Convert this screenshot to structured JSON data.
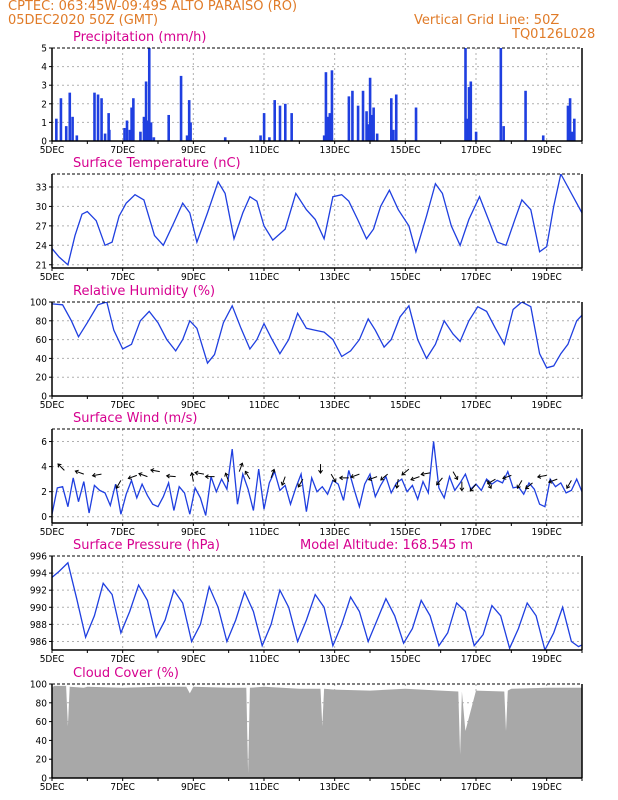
{
  "header": {
    "line1": "CPTEC:   063:45W-09:49S   ALTO PARAISO (RO)",
    "line2": "05DEC2020 50Z (GMT)",
    "grid_note": "Vertical Grid Line: 50Z",
    "code": "TQ0126L028"
  },
  "x_axis": {
    "labels": [
      "5DEC",
      "7DEC",
      "9DEC",
      "11DEC",
      "13DEC",
      "15DEC",
      "17DEC",
      "19DEC"
    ],
    "label_days": [
      0,
      2,
      4,
      6,
      8,
      10,
      12,
      14
    ],
    "range_days": [
      0,
      15
    ]
  },
  "colors": {
    "line": "#1f3fe0",
    "title": "#d6008f",
    "header": "#e07b28",
    "cloud": "#a8a8a8",
    "grid": "#b0b0b0"
  },
  "chart_data": [
    {
      "id": "precip",
      "type": "bar",
      "title": "Precipitation (mm/h)",
      "xlabel": "",
      "ylabel": "",
      "ylim": [
        0,
        5
      ],
      "yticks": [
        0,
        1,
        2,
        3,
        4,
        5
      ],
      "grid": true,
      "x": [
        0.12,
        0.25,
        0.4,
        0.5,
        0.58,
        0.7,
        1.2,
        1.3,
        1.4,
        1.5,
        1.6,
        1.62,
        2.05,
        2.12,
        2.2,
        2.25,
        2.3,
        2.5,
        2.6,
        2.66,
        2.7,
        2.75,
        2.8,
        2.88,
        3.3,
        3.65,
        3.82,
        3.88,
        3.92,
        4.9,
        5.9,
        6.0,
        6.15,
        6.3,
        6.45,
        6.6,
        6.78,
        7.7,
        7.75,
        7.8,
        7.86,
        7.92,
        8.4,
        8.5,
        8.66,
        8.8,
        8.9,
        8.95,
        9.0,
        9.05,
        9.1,
        9.2,
        9.6,
        9.66,
        9.74,
        10.3,
        11.7,
        11.75,
        11.8,
        11.85,
        12.0,
        12.7,
        12.78,
        13.4,
        13.9,
        14.6,
        14.66,
        14.72,
        14.78
      ],
      "values": [
        1.2,
        2.3,
        0.8,
        2.6,
        1.3,
        0.3,
        2.6,
        2.5,
        2.3,
        0.4,
        1.5,
        0.6,
        0.7,
        1.1,
        0.6,
        1.8,
        2.3,
        0.5,
        1.3,
        3.2,
        1.1,
        5.0,
        1.0,
        0.2,
        1.4,
        3.5,
        0.3,
        2.2,
        1.0,
        0.2,
        0.3,
        1.5,
        0.2,
        2.2,
        1.9,
        2.0,
        1.5,
        0.3,
        3.7,
        1.3,
        1.5,
        3.8,
        2.4,
        2.7,
        1.9,
        2.7,
        1.6,
        0.9,
        3.4,
        1.4,
        1.8,
        0.4,
        2.3,
        0.6,
        2.5,
        1.8,
        5.0,
        1.2,
        2.9,
        3.2,
        0.5,
        5.0,
        0.8,
        2.7,
        0.3,
        1.9,
        2.3,
        0.5,
        1.2
      ]
    },
    {
      "id": "temp",
      "type": "line",
      "title": "Surface Temperature (nC)",
      "xlabel": "",
      "ylabel": "",
      "ylim": [
        20.5,
        35
      ],
      "yticks": [
        21,
        24,
        27,
        30,
        33
      ],
      "grid": true,
      "x": [
        0,
        0.2,
        0.45,
        0.65,
        0.85,
        1.0,
        1.25,
        1.5,
        1.7,
        1.9,
        2.1,
        2.35,
        2.6,
        2.9,
        3.15,
        3.45,
        3.7,
        3.9,
        4.1,
        4.4,
        4.7,
        4.9,
        5.15,
        5.4,
        5.6,
        5.8,
        6.0,
        6.25,
        6.6,
        6.9,
        7.2,
        7.45,
        7.7,
        7.95,
        8.2,
        8.4,
        8.65,
        8.9,
        9.1,
        9.3,
        9.55,
        9.8,
        10.1,
        10.3,
        10.6,
        10.85,
        11.05,
        11.3,
        11.55,
        11.8,
        12.1,
        12.35,
        12.6,
        12.85,
        13.1,
        13.3,
        13.55,
        13.8,
        14.0,
        14.2,
        14.4,
        14.6,
        14.85,
        15.0
      ],
      "values": [
        23.5,
        22.2,
        21.0,
        25.5,
        28.8,
        29.2,
        27.8,
        24.0,
        24.5,
        28.5,
        30.5,
        31.8,
        31.0,
        25.5,
        24.0,
        27.5,
        30.5,
        29.0,
        24.5,
        29.0,
        33.8,
        32.0,
        25.0,
        29.0,
        31.5,
        30.8,
        27.0,
        24.8,
        26.5,
        32.0,
        29.5,
        28.0,
        25.0,
        31.5,
        31.8,
        30.8,
        28.0,
        25.0,
        26.5,
        30.0,
        32.5,
        29.5,
        27.0,
        23.0,
        28.5,
        33.5,
        32.0,
        27.0,
        24.0,
        28.0,
        31.5,
        28.0,
        24.5,
        24.0,
        28.0,
        31.0,
        29.5,
        23.0,
        23.8,
        30.0,
        35.0,
        33.0,
        30.5,
        29.0
      ]
    },
    {
      "id": "rh",
      "type": "line",
      "title": "Relative Humidity (%)",
      "xlabel": "",
      "ylabel": "",
      "ylim": [
        0,
        100
      ],
      "yticks": [
        0,
        20,
        40,
        60,
        80,
        100
      ],
      "grid": true,
      "x": [
        0,
        0.3,
        0.55,
        0.75,
        1.0,
        1.3,
        1.55,
        1.75,
        2.0,
        2.25,
        2.5,
        2.75,
        3.0,
        3.25,
        3.5,
        3.7,
        3.9,
        4.1,
        4.4,
        4.6,
        4.85,
        5.1,
        5.35,
        5.6,
        5.8,
        6.0,
        6.2,
        6.45,
        6.7,
        6.95,
        7.2,
        7.45,
        7.7,
        7.95,
        8.2,
        8.45,
        8.7,
        8.95,
        9.15,
        9.4,
        9.6,
        9.85,
        10.1,
        10.35,
        10.6,
        10.85,
        11.1,
        11.35,
        11.55,
        11.8,
        12.05,
        12.3,
        12.55,
        12.8,
        13.05,
        13.3,
        13.55,
        13.8,
        14.0,
        14.2,
        14.4,
        14.6,
        14.85,
        15.0
      ],
      "values": [
        98,
        97,
        80,
        63,
        78,
        97,
        100,
        70,
        50,
        55,
        80,
        90,
        78,
        60,
        48,
        60,
        80,
        72,
        35,
        44,
        78,
        96,
        72,
        50,
        60,
        77,
        62,
        45,
        60,
        88,
        72,
        70,
        68,
        60,
        42,
        48,
        60,
        82,
        70,
        52,
        60,
        84,
        96,
        60,
        40,
        55,
        80,
        66,
        58,
        80,
        95,
        90,
        72,
        55,
        92,
        100,
        95,
        45,
        30,
        32,
        45,
        55,
        80,
        86
      ]
    },
    {
      "id": "wind",
      "type": "line",
      "title": "Surface Wind (m/s)",
      "xlabel": "",
      "ylabel": "",
      "ylim": [
        -0.5,
        7
      ],
      "yticks": [
        0,
        2,
        4,
        6
      ],
      "grid": true,
      "x": [
        0,
        0.15,
        0.3,
        0.45,
        0.6,
        0.75,
        0.9,
        1.05,
        1.2,
        1.35,
        1.5,
        1.65,
        1.8,
        1.95,
        2.1,
        2.25,
        2.4,
        2.55,
        2.7,
        2.85,
        3.0,
        3.15,
        3.3,
        3.45,
        3.6,
        3.75,
        3.9,
        4.05,
        4.2,
        4.35,
        4.5,
        4.65,
        4.8,
        4.95,
        5.1,
        5.25,
        5.4,
        5.55,
        5.7,
        5.85,
        6.0,
        6.15,
        6.3,
        6.45,
        6.6,
        6.75,
        6.9,
        7.05,
        7.2,
        7.35,
        7.5,
        7.65,
        7.8,
        7.95,
        8.1,
        8.25,
        8.4,
        8.55,
        8.7,
        8.85,
        9.0,
        9.15,
        9.3,
        9.45,
        9.6,
        9.75,
        9.9,
        10.05,
        10.2,
        10.35,
        10.5,
        10.65,
        10.8,
        10.95,
        11.1,
        11.25,
        11.4,
        11.55,
        11.7,
        11.85,
        12.0,
        12.15,
        12.3,
        12.45,
        12.6,
        12.75,
        12.9,
        13.05,
        13.2,
        13.35,
        13.5,
        13.65,
        13.8,
        13.95,
        14.1,
        14.25,
        14.4,
        14.55,
        14.7,
        14.85,
        15.0
      ],
      "values": [
        0.2,
        2.3,
        2.4,
        0.8,
        3.1,
        1.2,
        2.8,
        0.3,
        2.5,
        2.1,
        1.9,
        0.9,
        2.6,
        0.2,
        1.8,
        2.9,
        1.5,
        2.6,
        1.7,
        1.0,
        0.8,
        1.6,
        2.7,
        0.5,
        2.4,
        1.9,
        0.2,
        2.3,
        1.5,
        0.1,
        3.2,
        2.0,
        3.0,
        2.2,
        5.4,
        1.0,
        3.4,
        2.2,
        0.5,
        3.8,
        0.6,
        2.7,
        3.6,
        2.1,
        2.5,
        1.0,
        2.3,
        3.4,
        0.4,
        3.1,
        2.0,
        2.4,
        1.8,
        2.9,
        2.6,
        1.3,
        3.7,
        2.2,
        0.8,
        2.6,
        3.4,
        1.6,
        2.5,
        3.2,
        1.9,
        2.7,
        3.0,
        2.0,
        2.5,
        1.4,
        2.8,
        1.9,
        6.0,
        2.3,
        1.5,
        3.2,
        2.1,
        2.7,
        3.4,
        2.2,
        2.6,
        2.1,
        3.0,
        2.6,
        2.9,
        2.7,
        3.6,
        2.3,
        2.4,
        1.8,
        2.7,
        2.2,
        1.0,
        0.8,
        3.0,
        2.4,
        2.7,
        1.9,
        2.1,
        3.0,
        2.0
      ],
      "arrows": [
        {
          "x": 0.35,
          "y": 3.7,
          "dir": 135
        },
        {
          "x": 0.9,
          "y": 3.4,
          "dir": 160
        },
        {
          "x": 1.4,
          "y": 3.4,
          "dir": 190
        },
        {
          "x": 1.95,
          "y": 2.9,
          "dir": 240
        },
        {
          "x": 2.4,
          "y": 3.3,
          "dir": 200
        },
        {
          "x": 2.7,
          "y": 3.2,
          "dir": 160
        },
        {
          "x": 3.05,
          "y": 3.6,
          "dir": 170
        },
        {
          "x": 3.5,
          "y": 3.2,
          "dir": 175
        },
        {
          "x": 4.0,
          "y": 2.8,
          "dir": 100
        },
        {
          "x": 4.3,
          "y": 3.4,
          "dir": 170
        },
        {
          "x": 4.6,
          "y": 3.2,
          "dir": 180
        },
        {
          "x": 5.0,
          "y": 2.8,
          "dir": 110
        },
        {
          "x": 5.3,
          "y": 3.6,
          "dir": 70
        },
        {
          "x": 5.6,
          "y": 3.0,
          "dir": 120
        },
        {
          "x": 6.2,
          "y": 3.1,
          "dir": 70
        },
        {
          "x": 6.6,
          "y": 3.2,
          "dir": 250
        },
        {
          "x": 7.1,
          "y": 3.0,
          "dir": 240
        },
        {
          "x": 7.6,
          "y": 4.2,
          "dir": 270
        },
        {
          "x": 7.9,
          "y": 3.4,
          "dir": 300
        },
        {
          "x": 8.4,
          "y": 3.1,
          "dir": 180
        },
        {
          "x": 8.7,
          "y": 3.4,
          "dir": 200
        },
        {
          "x": 9.2,
          "y": 3.2,
          "dir": 200
        },
        {
          "x": 9.5,
          "y": 3.4,
          "dir": 220
        },
        {
          "x": 9.8,
          "y": 3.0,
          "dir": 260
        },
        {
          "x": 10.1,
          "y": 3.8,
          "dir": 220
        },
        {
          "x": 10.4,
          "y": 3.2,
          "dir": 200
        },
        {
          "x": 10.7,
          "y": 3.5,
          "dir": 190
        },
        {
          "x": 11.05,
          "y": 3.1,
          "dir": 230
        },
        {
          "x": 11.35,
          "y": 3.6,
          "dir": 300
        },
        {
          "x": 11.6,
          "y": 2.8,
          "dir": 270
        },
        {
          "x": 12.0,
          "y": 2.6,
          "dir": 230
        },
        {
          "x": 12.3,
          "y": 2.9,
          "dir": 300
        },
        {
          "x": 12.55,
          "y": 3.0,
          "dir": 210
        },
        {
          "x": 13.0,
          "y": 3.3,
          "dir": 200
        },
        {
          "x": 13.3,
          "y": 2.9,
          "dir": 240
        },
        {
          "x": 13.6,
          "y": 2.7,
          "dir": 220
        },
        {
          "x": 14.0,
          "y": 3.3,
          "dir": 190
        },
        {
          "x": 14.3,
          "y": 3.0,
          "dir": 200
        },
        {
          "x": 14.7,
          "y": 2.9,
          "dir": 240
        }
      ]
    },
    {
      "id": "pres",
      "type": "line",
      "title": "Surface Pressure (hPa)",
      "subtitle": "Model Altitude: 168.545 m",
      "xlabel": "",
      "ylabel": "",
      "ylim": [
        985,
        996
      ],
      "yticks": [
        986,
        988,
        990,
        992,
        994,
        996
      ],
      "grid": true,
      "x": [
        0,
        0.2,
        0.45,
        0.7,
        0.95,
        1.2,
        1.45,
        1.7,
        1.95,
        2.2,
        2.45,
        2.7,
        2.95,
        3.2,
        3.45,
        3.7,
        3.95,
        4.2,
        4.45,
        4.7,
        4.95,
        5.2,
        5.45,
        5.7,
        5.95,
        6.2,
        6.45,
        6.7,
        6.95,
        7.2,
        7.45,
        7.7,
        7.95,
        8.2,
        8.45,
        8.7,
        8.95,
        9.2,
        9.45,
        9.7,
        9.95,
        10.2,
        10.45,
        10.7,
        10.95,
        11.2,
        11.45,
        11.7,
        11.95,
        12.2,
        12.45,
        12.7,
        12.95,
        13.2,
        13.45,
        13.7,
        13.95,
        14.2,
        14.45,
        14.7,
        14.9,
        15.0
      ],
      "values": [
        993.5,
        994.2,
        995.2,
        991.0,
        986.5,
        989.0,
        992.8,
        991.5,
        987.0,
        989.5,
        992.6,
        990.8,
        986.5,
        988.5,
        992.0,
        990.5,
        986.0,
        988.0,
        992.4,
        990.0,
        986.0,
        988.5,
        991.8,
        989.5,
        985.5,
        988.0,
        992.0,
        990.0,
        986.0,
        988.5,
        991.5,
        990.0,
        985.5,
        988.0,
        991.2,
        989.5,
        986.0,
        988.5,
        991.0,
        989.0,
        985.8,
        987.5,
        990.8,
        989.0,
        985.5,
        987.0,
        990.5,
        989.5,
        985.5,
        986.8,
        990.2,
        989.0,
        985.2,
        987.5,
        990.5,
        989.0,
        985.0,
        987.0,
        990.0,
        986.0,
        985.4,
        985.6
      ]
    },
    {
      "id": "cloud",
      "type": "area",
      "title": "Cloud Cover (%)",
      "xlabel": "",
      "ylabel": "",
      "ylim": [
        0,
        100
      ],
      "yticks": [
        0,
        20,
        40,
        60,
        80,
        100
      ],
      "grid": true,
      "x": [
        0,
        0.05,
        0.4,
        0.45,
        0.5,
        0.9,
        1.0,
        2.0,
        3.0,
        3.8,
        3.9,
        4.0,
        5.0,
        5.5,
        5.55,
        5.6,
        6.0,
        7.0,
        7.6,
        7.65,
        7.7,
        8.0,
        9.0,
        10.0,
        11.0,
        11.5,
        11.55,
        11.6,
        11.7,
        12.0,
        12.8,
        12.85,
        12.9,
        13.0,
        14.0,
        15.0
      ],
      "values": [
        95,
        98,
        98,
        55,
        97,
        96,
        97,
        96,
        97,
        97,
        90,
        97,
        96,
        96,
        5,
        96,
        97,
        95,
        95,
        55,
        95,
        94,
        93,
        95,
        93,
        92,
        25,
        92,
        50,
        93,
        92,
        50,
        93,
        95,
        96,
        96
      ]
    }
  ]
}
